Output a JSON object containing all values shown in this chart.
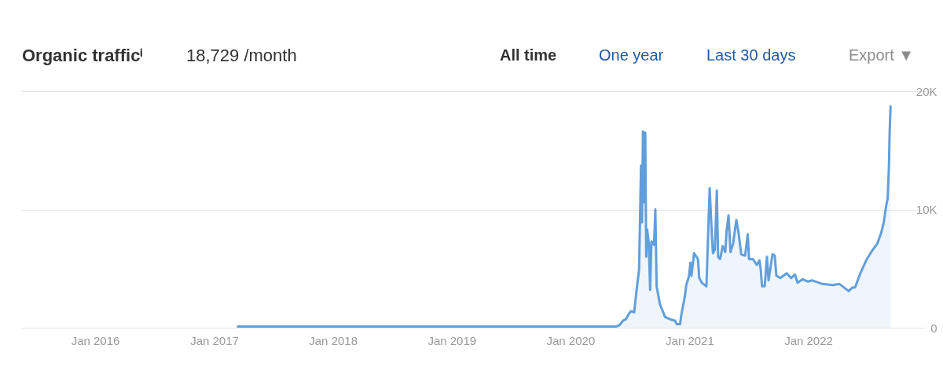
{
  "chart_data": {
    "type": "area",
    "title": "Organic trafficⁱ",
    "subtitle": "18,729 /month",
    "annotations": [
      "All time",
      "One year",
      "Last 30 days",
      "Export ▼"
    ],
    "x": [
      "2017-03-15",
      "2020-05-20",
      "2020-05-30",
      "2020-06-11",
      "2020-06-19",
      "2020-06-27",
      "2020-07-05",
      "2020-07-15",
      "2020-07-22",
      "2020-07-30",
      "2020-08-05",
      "2020-08-08",
      "2020-08-11",
      "2020-08-15",
      "2020-08-18",
      "2020-08-21",
      "2020-08-24",
      "2020-08-29",
      "2020-09-02",
      "2020-09-06",
      "2020-09-14",
      "2020-09-18",
      "2020-09-22",
      "2020-10-02",
      "2020-10-18",
      "2020-11-03",
      "2020-11-17",
      "2020-11-23",
      "2020-12-03",
      "2020-12-07",
      "2020-12-18",
      "2020-12-22",
      "2020-12-30",
      "2021-01-04",
      "2021-01-07",
      "2021-01-15",
      "2021-01-27",
      "2021-01-31",
      "2021-02-08",
      "2021-02-22",
      "2021-02-27",
      "2021-03-04",
      "2021-03-10",
      "2021-03-14",
      "2021-03-20",
      "2021-03-26",
      "2021-03-30",
      "2021-04-05",
      "2021-04-13",
      "2021-04-21",
      "2021-04-25",
      "2021-05-01",
      "2021-05-07",
      "2021-05-15",
      "2021-05-25",
      "2021-06-01",
      "2021-06-09",
      "2021-06-21",
      "2021-06-29",
      "2021-07-03",
      "2021-07-15",
      "2021-07-27",
      "2021-08-04",
      "2021-08-08",
      "2021-08-12",
      "2021-08-20",
      "2021-08-27",
      "2021-09-01",
      "2021-09-13",
      "2021-09-20",
      "2021-09-25",
      "2021-10-07",
      "2021-10-27",
      "2021-11-09",
      "2021-11-21",
      "2021-11-29",
      "2021-12-15",
      "2021-12-31",
      "2022-01-13",
      "2022-02-14",
      "2022-03-17",
      "2022-04-07",
      "2022-05-05",
      "2022-05-17",
      "2022-05-25",
      "2022-06-10",
      "2022-06-30",
      "2022-07-16",
      "2022-08-01",
      "2022-08-13",
      "2022-08-21",
      "2022-08-29",
      "2022-09-02",
      "2022-09-06",
      "2022-09-08",
      "2022-09-11"
    ],
    "series": [
      {
        "color": "#619fdc",
        "values": [
          100,
          100,
          200,
          600,
          700,
          1100,
          1400,
          1300,
          3100,
          4900,
          13700,
          8900,
          16600,
          10600,
          16500,
          6000,
          8300,
          7100,
          3200,
          7300,
          7000,
          10000,
          3500,
          2000,
          900,
          700,
          600,
          300,
          300,
          1100,
          2700,
          3600,
          4300,
          5500,
          4400,
          6300,
          5800,
          4200,
          3800,
          3500,
          7700,
          11800,
          8300,
          6300,
          6600,
          11600,
          6000,
          5800,
          6900,
          6400,
          8200,
          9500,
          6400,
          7100,
          9100,
          8000,
          6200,
          6100,
          7900,
          5800,
          5800,
          5300,
          5700,
          4900,
          3500,
          3500,
          6000,
          4000,
          6200,
          6100,
          4400,
          4200,
          4600,
          4200,
          4500,
          3800,
          4100,
          3900,
          4000,
          3700,
          3600,
          3700,
          3100,
          3400,
          3400,
          4600,
          5800,
          6500,
          7100,
          8000,
          8900,
          10400,
          10900,
          13700,
          16400,
          18700
        ]
      }
    ],
    "xlim": [
      "2015-05-19",
      "2022-12-28"
    ],
    "xticks": [
      {
        "value": "2016-01",
        "label": "Jan 2016"
      },
      {
        "value": "2017-01",
        "label": "Jan 2017"
      },
      {
        "value": "2018-01",
        "label": "Jan 2018"
      },
      {
        "value": "2019-01",
        "label": "Jan 2019"
      },
      {
        "value": "2020-01",
        "label": "Jan 2020"
      },
      {
        "value": "2021-01",
        "label": "Jan 2021"
      },
      {
        "value": "2022-01",
        "label": "Jan 2022"
      }
    ],
    "ylim": [
      0,
      20000
    ],
    "yticks": [
      0,
      {
        "value": 10000,
        "label": "10K"
      },
      {
        "value": 20000,
        "label": "20K"
      }
    ],
    "grid": "y"
  }
}
